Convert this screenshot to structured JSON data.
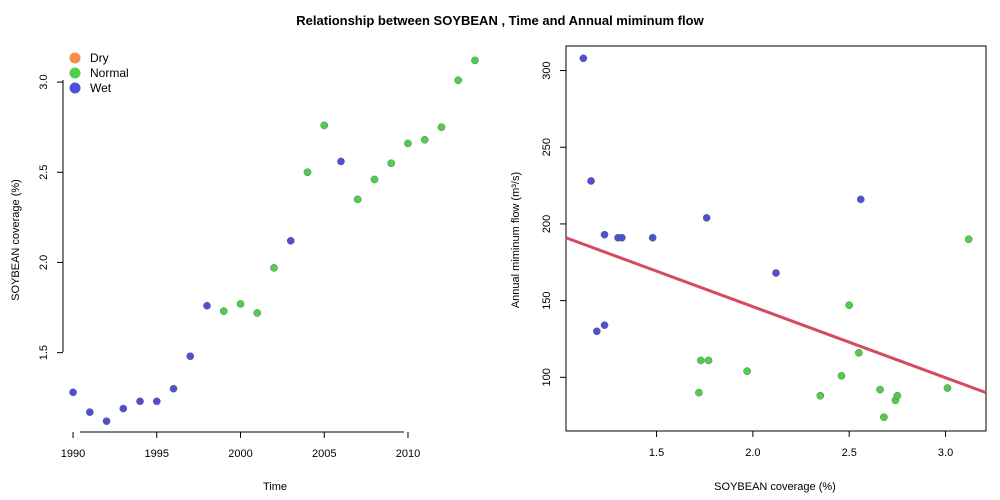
{
  "title": "Relationship between SOYBEAN , Time and Annual miminum flow",
  "colors": {
    "Dry": "#f58f4a",
    "Normal": "#4fd04a",
    "Wet": "#5050d4",
    "regression": "#d64a5e"
  },
  "legend": [
    "Dry",
    "Normal",
    "Wet"
  ],
  "chart_data": [
    {
      "type": "scatter",
      "xlabel": "Time",
      "ylabel": "SOYBEAN coverage (%)",
      "xlim": [
        1989.4,
        2014.6
      ],
      "ylim": [
        1.06,
        3.2
      ],
      "xticks": [
        1990,
        1995,
        2000,
        2005,
        2010
      ],
      "yticks": [
        1.5,
        2.0,
        2.5,
        3.0
      ],
      "ytick_labels": [
        "1.5",
        "2.0",
        "2.5",
        "3.0"
      ],
      "legend_position": "top-left",
      "points": [
        {
          "x": 1990,
          "y": 1.28,
          "cls": "Wet"
        },
        {
          "x": 1991,
          "y": 1.17,
          "cls": "Wet"
        },
        {
          "x": 1992,
          "y": 1.12,
          "cls": "Wet"
        },
        {
          "x": 1993,
          "y": 1.19,
          "cls": "Wet"
        },
        {
          "x": 1994,
          "y": 1.23,
          "cls": "Wet"
        },
        {
          "x": 1995,
          "y": 1.23,
          "cls": "Wet"
        },
        {
          "x": 1996,
          "y": 1.3,
          "cls": "Wet"
        },
        {
          "x": 1997,
          "y": 1.48,
          "cls": "Wet"
        },
        {
          "x": 1998,
          "y": 1.76,
          "cls": "Wet"
        },
        {
          "x": 1999,
          "y": 1.73,
          "cls": "Normal"
        },
        {
          "x": 2000,
          "y": 1.77,
          "cls": "Normal"
        },
        {
          "x": 2001,
          "y": 1.72,
          "cls": "Normal"
        },
        {
          "x": 2002,
          "y": 1.97,
          "cls": "Normal"
        },
        {
          "x": 2003,
          "y": 2.12,
          "cls": "Wet"
        },
        {
          "x": 2004,
          "y": 2.5,
          "cls": "Normal"
        },
        {
          "x": 2005,
          "y": 2.76,
          "cls": "Normal"
        },
        {
          "x": 2006,
          "y": 2.56,
          "cls": "Wet"
        },
        {
          "x": 2007,
          "y": 2.35,
          "cls": "Normal"
        },
        {
          "x": 2008,
          "y": 2.46,
          "cls": "Normal"
        },
        {
          "x": 2009,
          "y": 2.55,
          "cls": "Normal"
        },
        {
          "x": 2010,
          "y": 2.66,
          "cls": "Normal"
        },
        {
          "x": 2011,
          "y": 2.68,
          "cls": "Normal"
        },
        {
          "x": 2012,
          "y": 2.75,
          "cls": "Normal"
        },
        {
          "x": 2013,
          "y": 3.01,
          "cls": "Normal"
        },
        {
          "x": 2014,
          "y": 3.12,
          "cls": "Normal"
        }
      ]
    },
    {
      "type": "scatter",
      "xlabel": "SOYBEAN coverage (%)",
      "ylabel": "Annual miminum flow (m³/s)",
      "xlim": [
        1.03,
        3.21
      ],
      "ylim": [
        65,
        316
      ],
      "xticks": [
        1.5,
        2.0,
        2.5,
        3.0
      ],
      "xtick_labels": [
        "1.5",
        "2.0",
        "2.5",
        "3.0"
      ],
      "yticks": [
        100,
        150,
        200,
        250,
        300
      ],
      "regression_line": [
        {
          "x": 1.03,
          "y": 191
        },
        {
          "x": 3.21,
          "y": 90
        }
      ],
      "points": [
        {
          "x": 1.12,
          "y": 308,
          "cls": "Wet"
        },
        {
          "x": 1.16,
          "y": 228,
          "cls": "Wet"
        },
        {
          "x": 1.23,
          "y": 193,
          "cls": "Wet"
        },
        {
          "x": 1.3,
          "y": 191,
          "cls": "Wet"
        },
        {
          "x": 1.32,
          "y": 191,
          "cls": "Wet"
        },
        {
          "x": 1.48,
          "y": 191,
          "cls": "Wet"
        },
        {
          "x": 1.19,
          "y": 130,
          "cls": "Wet"
        },
        {
          "x": 1.23,
          "y": 134,
          "cls": "Wet"
        },
        {
          "x": 1.76,
          "y": 204,
          "cls": "Wet"
        },
        {
          "x": 2.12,
          "y": 168,
          "cls": "Wet"
        },
        {
          "x": 2.56,
          "y": 216,
          "cls": "Wet"
        },
        {
          "x": 1.73,
          "y": 111,
          "cls": "Normal"
        },
        {
          "x": 1.77,
          "y": 111,
          "cls": "Normal"
        },
        {
          "x": 1.72,
          "y": 90,
          "cls": "Normal"
        },
        {
          "x": 1.97,
          "y": 104,
          "cls": "Normal"
        },
        {
          "x": 2.35,
          "y": 88,
          "cls": "Normal"
        },
        {
          "x": 2.46,
          "y": 101,
          "cls": "Normal"
        },
        {
          "x": 2.5,
          "y": 147,
          "cls": "Normal"
        },
        {
          "x": 2.55,
          "y": 116,
          "cls": "Normal"
        },
        {
          "x": 2.66,
          "y": 92,
          "cls": "Normal"
        },
        {
          "x": 2.68,
          "y": 74,
          "cls": "Normal"
        },
        {
          "x": 2.74,
          "y": 85,
          "cls": "Normal"
        },
        {
          "x": 2.75,
          "y": 88,
          "cls": "Normal"
        },
        {
          "x": 3.01,
          "y": 93,
          "cls": "Normal"
        },
        {
          "x": 3.12,
          "y": 190,
          "cls": "Normal"
        }
      ]
    }
  ]
}
